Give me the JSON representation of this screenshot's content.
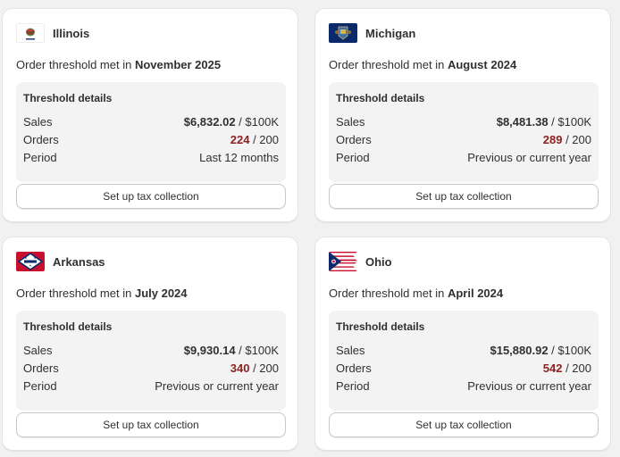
{
  "cards": [
    {
      "state": "Illinois",
      "flag_icon": "illinois-flag-icon",
      "met_prefix": "Order threshold met in",
      "met_date": "November 2025",
      "details_title": "Threshold details",
      "sales_label": "Sales",
      "sales_amount": "$6,832.02",
      "sales_limit": " / $100K",
      "orders_label": "Orders",
      "orders_count": "224",
      "orders_limit": " / 200",
      "period_label": "Period",
      "period_value": "Last 12 months",
      "button_label": "Set up tax collection"
    },
    {
      "state": "Michigan",
      "flag_icon": "michigan-flag-icon",
      "met_prefix": "Order threshold met in",
      "met_date": "August 2024",
      "details_title": "Threshold details",
      "sales_label": "Sales",
      "sales_amount": "$8,481.38",
      "sales_limit": " / $100K",
      "orders_label": "Orders",
      "orders_count": "289",
      "orders_limit": " / 200",
      "period_label": "Period",
      "period_value": "Previous or current year",
      "button_label": "Set up tax collection"
    },
    {
      "state": "Arkansas",
      "flag_icon": "arkansas-flag-icon",
      "met_prefix": "Order threshold met in",
      "met_date": "July 2024",
      "details_title": "Threshold details",
      "sales_label": "Sales",
      "sales_amount": "$9,930.14",
      "sales_limit": " / $100K",
      "orders_label": "Orders",
      "orders_count": "340",
      "orders_limit": " / 200",
      "period_label": "Period",
      "period_value": "Previous or current year",
      "button_label": "Set up tax collection"
    },
    {
      "state": "Ohio",
      "flag_icon": "ohio-flag-icon",
      "met_prefix": "Order threshold met in",
      "met_date": "April 2024",
      "details_title": "Threshold details",
      "sales_label": "Sales",
      "sales_amount": "$15,880.92",
      "sales_limit": " / $100K",
      "orders_label": "Orders",
      "orders_count": "542",
      "orders_limit": " / 200",
      "period_label": "Period",
      "period_value": "Previous or current year",
      "button_label": "Set up tax collection"
    }
  ],
  "colors": {
    "over_threshold": "#8e1f1f",
    "details_background": "#f3f3f3",
    "page_background": "#f1f1f1"
  }
}
